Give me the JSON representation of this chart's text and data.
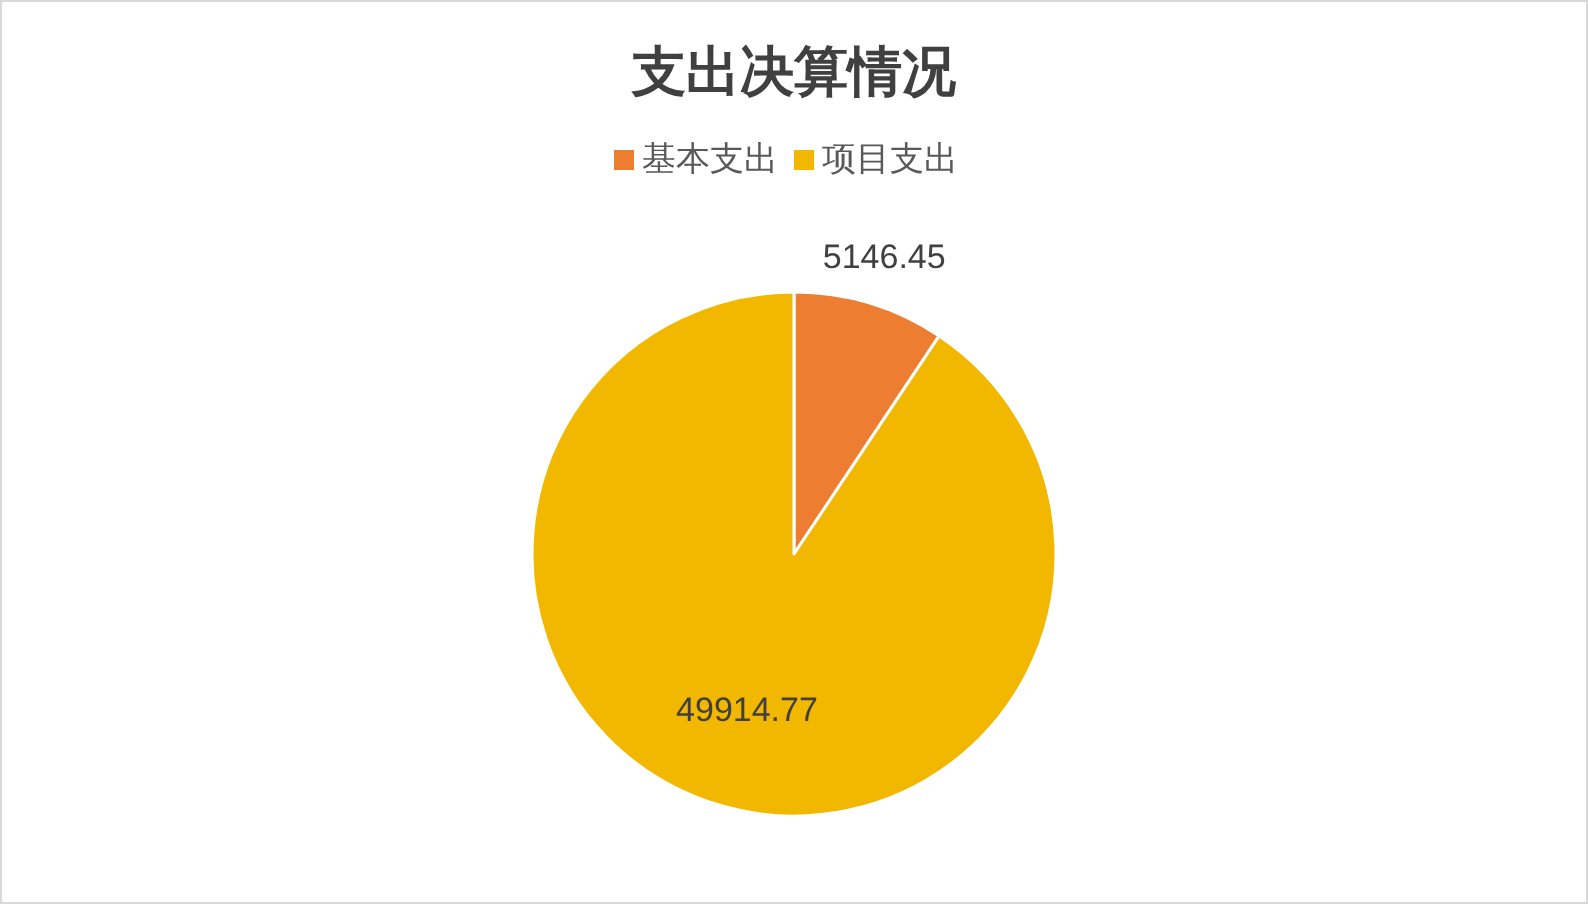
{
  "chart_data": {
    "type": "pie",
    "title": "支出决算情况",
    "categories": [
      "基本支出",
      "项目支出"
    ],
    "values": [
      5146.45,
      49914.77
    ],
    "colors": [
      "#ed7d31",
      "#f2b800"
    ],
    "data_labels": true,
    "legend": "top"
  }
}
